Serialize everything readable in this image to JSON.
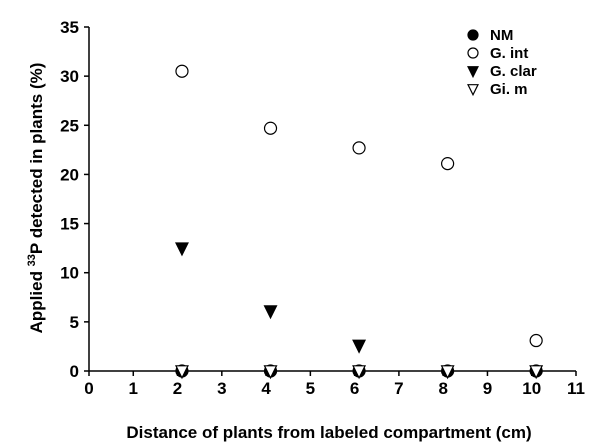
{
  "chart_data": {
    "type": "scatter",
    "title": "",
    "xlabel": "Distance of plants from labeled compartment (cm)",
    "ylabel_parts": {
      "pre": "Applied ",
      "sup": "33",
      "post": "P detected in plants (%)"
    },
    "xlim": [
      0,
      11
    ],
    "ylim": [
      0,
      35
    ],
    "x_ticks": [
      0,
      1,
      2,
      3,
      4,
      5,
      6,
      7,
      8,
      9,
      10,
      11
    ],
    "y_ticks": [
      0,
      5,
      10,
      15,
      20,
      25,
      30,
      35
    ],
    "grid": false,
    "legend_position": "top-right",
    "series": [
      {
        "name": "NM",
        "marker": "circle-filled",
        "points": [
          [
            2.1,
            0
          ],
          [
            4.1,
            0
          ],
          [
            6.1,
            0
          ],
          [
            8.1,
            0
          ],
          [
            10.1,
            0
          ]
        ]
      },
      {
        "name": "G. int",
        "marker": "circle-open",
        "points": [
          [
            2.1,
            30.5
          ],
          [
            4.1,
            24.7
          ],
          [
            6.1,
            22.7
          ],
          [
            8.1,
            21.1
          ],
          [
            10.1,
            3.1
          ]
        ]
      },
      {
        "name": "G. clar",
        "marker": "triangle-down-filled",
        "points": [
          [
            2.1,
            12.5
          ],
          [
            4.1,
            6.1
          ],
          [
            6.1,
            2.6
          ]
        ]
      },
      {
        "name": "Gi. m",
        "marker": "triangle-down-open",
        "points": [
          [
            2.1,
            0
          ],
          [
            4.1,
            0
          ],
          [
            6.1,
            0
          ],
          [
            8.1,
            0
          ],
          [
            10.1,
            0
          ]
        ]
      }
    ]
  }
}
